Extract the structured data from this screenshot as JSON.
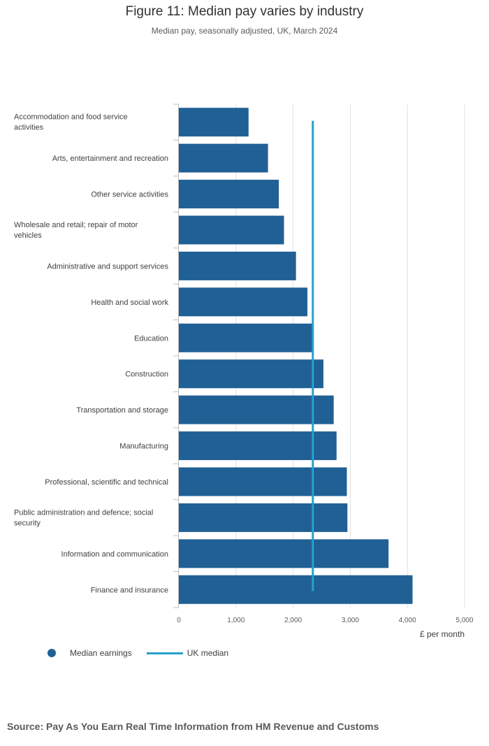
{
  "header": {
    "title": "Figure 11: Median pay varies by industry",
    "subtitle": "Median pay, seasonally adjusted, UK, March 2024"
  },
  "legend": {
    "items": [
      {
        "label": "Median earnings",
        "color": "#206095",
        "marker": "circle"
      },
      {
        "label": "UK median",
        "color": "#27a0cc",
        "marker": "line"
      }
    ]
  },
  "footer": {
    "source": "Source: Pay As You Earn Real Time Information from HM Revenue and Customs"
  },
  "chart_data": {
    "type": "bar",
    "orientation": "horizontal",
    "categories": [
      [
        "Accommodation and food service",
        "activities"
      ],
      [
        "Arts, entertainment and recreation"
      ],
      [
        "Other service activities"
      ],
      [
        "Wholesale and retail; repair of motor",
        "vehicles"
      ],
      [
        "Administrative and support services"
      ],
      [
        "Health and social work"
      ],
      [
        "Education"
      ],
      [
        "Construction"
      ],
      [
        "Transportation and storage"
      ],
      [
        "Manufacturing"
      ],
      [
        "Professional, scientific and technical"
      ],
      [
        "Public administration and defence; social",
        "security"
      ],
      [
        "Information and communication"
      ],
      [
        "Finance and insurance"
      ]
    ],
    "series": [
      {
        "name": "Median earnings",
        "color": "#206095",
        "values": [
          1220,
          1560,
          1750,
          1840,
          2050,
          2250,
          2330,
          2530,
          2710,
          2760,
          2940,
          2950,
          3670,
          4090
        ]
      }
    ],
    "reference_line": {
      "name": "UK median",
      "value": 2345,
      "color": "#27a0cc"
    },
    "xlim": [
      0,
      5000
    ],
    "xticks": [
      0,
      1000,
      2000,
      3000,
      4000,
      5000
    ],
    "xtick_labels": [
      "0",
      "1,000",
      "2,000",
      "3,000",
      "4,000",
      "5,000"
    ],
    "xlabel": "£ per month",
    "ylabel": "",
    "grid": true,
    "legend_position": "bottom-left"
  }
}
